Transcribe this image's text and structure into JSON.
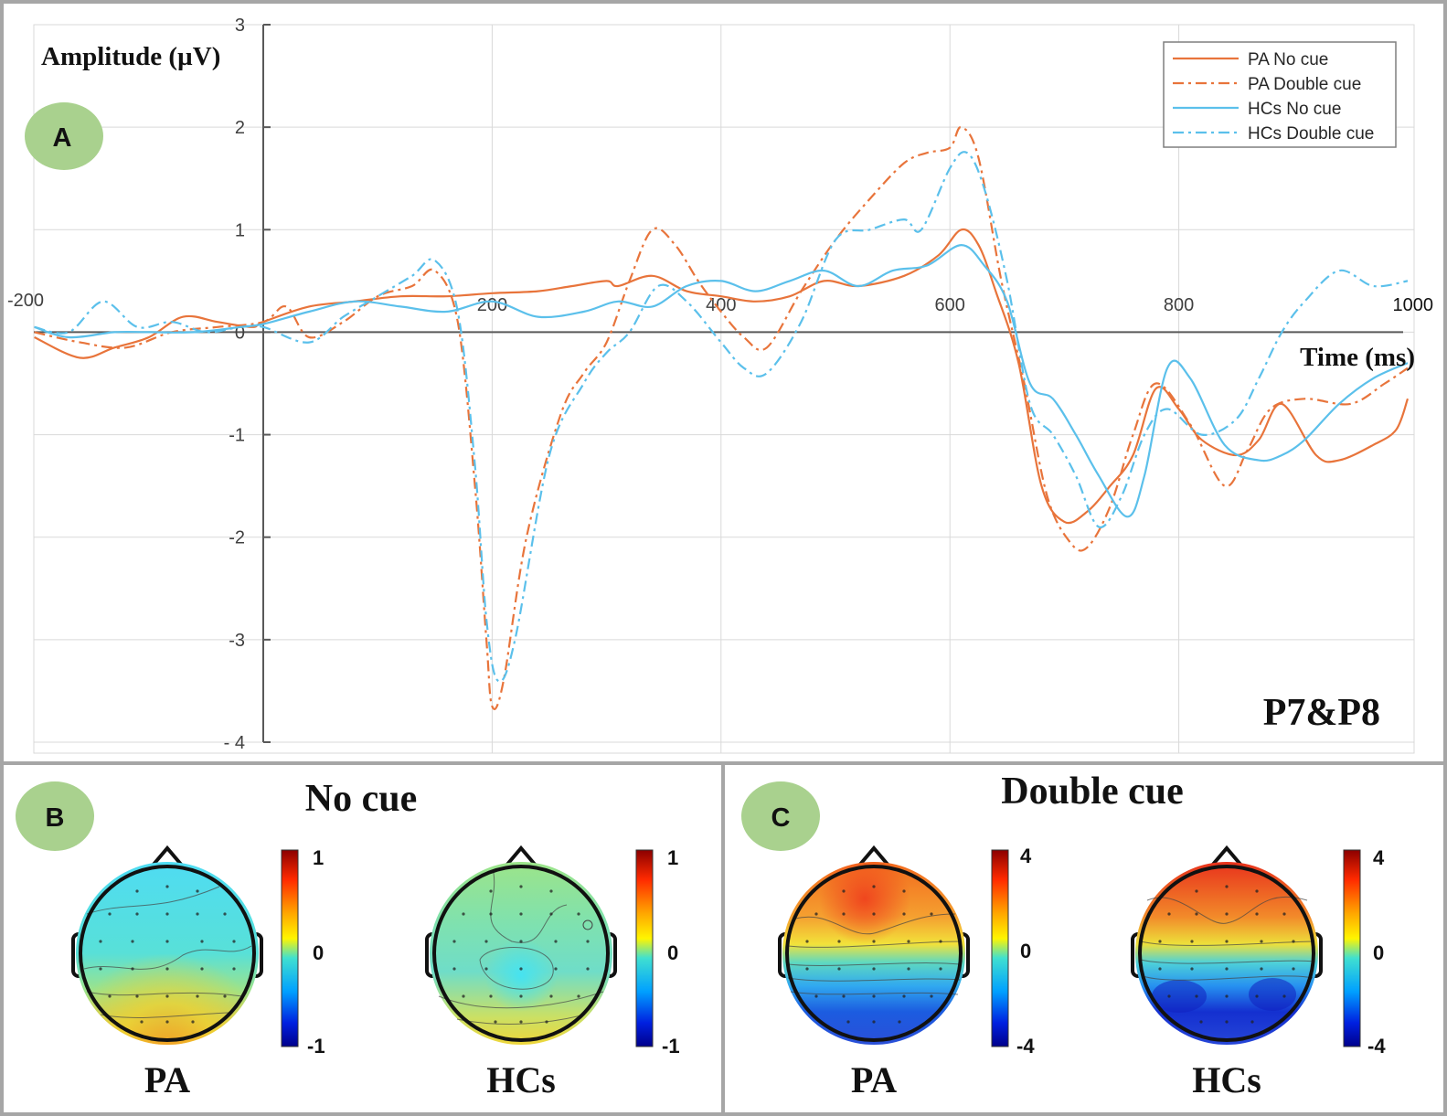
{
  "panels": {
    "a": {
      "badge": "A",
      "label": "P7&P8",
      "ylabel": "Amplitude (µV)",
      "xlabel": "Time (ms)"
    },
    "b": {
      "badge": "B",
      "title": "No cue",
      "maps": [
        {
          "group": "PA",
          "colorbar_ticks": [
            "1",
            "0",
            "-1"
          ]
        },
        {
          "group": "HCs",
          "colorbar_ticks": [
            "1",
            "0",
            "-1"
          ]
        }
      ]
    },
    "c": {
      "badge": "C",
      "title": "Double cue",
      "maps": [
        {
          "group": "PA",
          "colorbar_ticks": [
            "4",
            "0",
            "-4"
          ]
        },
        {
          "group": "HCs",
          "colorbar_ticks": [
            "4",
            "0",
            "-4"
          ]
        }
      ]
    }
  },
  "colors": {
    "pa": "#E8743B",
    "hcs": "#5BC0EB",
    "badge": "#A9D18E",
    "frame": "#A6A6A6",
    "grid": "#D9D9D9"
  },
  "chart_data": {
    "type": "line",
    "title": "P7&P8",
    "xlabel": "Time (ms)",
    "ylabel": "Amplitude (µV)",
    "xlim": [
      -200,
      1000
    ],
    "ylim": [
      -4,
      3
    ],
    "xticks": [
      -200,
      200,
      400,
      600,
      800,
      1000
    ],
    "xtick_labels": [
      "-200",
      "200",
      "400",
      "600",
      "800",
      "1000"
    ],
    "yticks": [
      3,
      2,
      1,
      0,
      -1,
      -2,
      -3,
      -4
    ],
    "ytick_labels": [
      "3",
      "2",
      "1",
      "0",
      "-1",
      "-2",
      "-3",
      "- 4"
    ],
    "grid": true,
    "legend_position": "top-right",
    "series": [
      {
        "name": "PA No cue",
        "color": "#E8743B",
        "dash": "solid",
        "points": [
          [
            -200,
            -0.05
          ],
          [
            -160,
            -0.25
          ],
          [
            -130,
            -0.15
          ],
          [
            -100,
            -0.05
          ],
          [
            -70,
            0.15
          ],
          [
            -40,
            0.1
          ],
          [
            -10,
            0.05
          ],
          [
            0,
            0.1
          ],
          [
            40,
            0.25
          ],
          [
            80,
            0.3
          ],
          [
            120,
            0.35
          ],
          [
            160,
            0.35
          ],
          [
            200,
            0.38
          ],
          [
            240,
            0.4
          ],
          [
            270,
            0.45
          ],
          [
            300,
            0.5
          ],
          [
            310,
            0.45
          ],
          [
            340,
            0.55
          ],
          [
            370,
            0.4
          ],
          [
            400,
            0.35
          ],
          [
            430,
            0.3
          ],
          [
            460,
            0.35
          ],
          [
            490,
            0.5
          ],
          [
            520,
            0.45
          ],
          [
            560,
            0.55
          ],
          [
            590,
            0.75
          ],
          [
            610,
            1.0
          ],
          [
            625,
            0.85
          ],
          [
            640,
            0.4
          ],
          [
            660,
            -0.3
          ],
          [
            680,
            -1.5
          ],
          [
            700,
            -1.85
          ],
          [
            720,
            -1.75
          ],
          [
            740,
            -1.5
          ],
          [
            760,
            -1.2
          ],
          [
            780,
            -0.55
          ],
          [
            800,
            -0.75
          ],
          [
            820,
            -1.05
          ],
          [
            850,
            -1.2
          ],
          [
            870,
            -1.05
          ],
          [
            890,
            -0.7
          ],
          [
            920,
            -1.2
          ],
          [
            940,
            -1.25
          ],
          [
            970,
            -1.1
          ],
          [
            990,
            -0.95
          ],
          [
            1000,
            -0.65
          ]
        ]
      },
      {
        "name": "PA Double cue",
        "color": "#E8743B",
        "dash": "dashdot",
        "points": [
          [
            -200,
            0.0
          ],
          [
            -160,
            -0.1
          ],
          [
            -120,
            -0.15
          ],
          [
            -80,
            0.0
          ],
          [
            -40,
            0.05
          ],
          [
            0,
            0.1
          ],
          [
            20,
            0.25
          ],
          [
            40,
            -0.05
          ],
          [
            70,
            0.1
          ],
          [
            100,
            0.35
          ],
          [
            130,
            0.45
          ],
          [
            150,
            0.6
          ],
          [
            170,
            0.1
          ],
          [
            185,
            -1.5
          ],
          [
            195,
            -3.0
          ],
          [
            200,
            -3.65
          ],
          [
            210,
            -3.4
          ],
          [
            230,
            -2.0
          ],
          [
            260,
            -0.8
          ],
          [
            280,
            -0.4
          ],
          [
            300,
            -0.1
          ],
          [
            320,
            0.5
          ],
          [
            340,
            1.0
          ],
          [
            360,
            0.85
          ],
          [
            380,
            0.5
          ],
          [
            400,
            0.2
          ],
          [
            420,
            -0.05
          ],
          [
            440,
            -0.15
          ],
          [
            470,
            0.4
          ],
          [
            500,
            0.9
          ],
          [
            530,
            1.3
          ],
          [
            560,
            1.65
          ],
          [
            580,
            1.75
          ],
          [
            600,
            1.8
          ],
          [
            610,
            2.0
          ],
          [
            625,
            1.7
          ],
          [
            645,
            0.5
          ],
          [
            665,
            -0.5
          ],
          [
            685,
            -1.6
          ],
          [
            705,
            -2.05
          ],
          [
            720,
            -2.1
          ],
          [
            740,
            -1.7
          ],
          [
            760,
            -1.0
          ],
          [
            780,
            -0.5
          ],
          [
            810,
            -0.9
          ],
          [
            840,
            -1.5
          ],
          [
            860,
            -1.15
          ],
          [
            880,
            -0.75
          ],
          [
            910,
            -0.65
          ],
          [
            950,
            -0.7
          ],
          [
            980,
            -0.5
          ],
          [
            1000,
            -0.35
          ]
        ]
      },
      {
        "name": "HCs No cue",
        "color": "#5BC0EB",
        "dash": "solid",
        "points": [
          [
            -200,
            0.05
          ],
          [
            -170,
            -0.05
          ],
          [
            -130,
            0.0
          ],
          [
            -100,
            0.0
          ],
          [
            -60,
            0.0
          ],
          [
            -20,
            0.05
          ],
          [
            0,
            0.08
          ],
          [
            40,
            0.2
          ],
          [
            80,
            0.3
          ],
          [
            120,
            0.25
          ],
          [
            160,
            0.2
          ],
          [
            200,
            0.3
          ],
          [
            240,
            0.15
          ],
          [
            280,
            0.2
          ],
          [
            310,
            0.3
          ],
          [
            340,
            0.25
          ],
          [
            370,
            0.45
          ],
          [
            400,
            0.5
          ],
          [
            430,
            0.4
          ],
          [
            460,
            0.5
          ],
          [
            490,
            0.6
          ],
          [
            520,
            0.45
          ],
          [
            550,
            0.6
          ],
          [
            580,
            0.65
          ],
          [
            610,
            0.85
          ],
          [
            630,
            0.65
          ],
          [
            650,
            0.3
          ],
          [
            670,
            -0.5
          ],
          [
            690,
            -0.65
          ],
          [
            710,
            -1.0
          ],
          [
            730,
            -1.4
          ],
          [
            755,
            -1.8
          ],
          [
            770,
            -1.4
          ],
          [
            790,
            -0.35
          ],
          [
            810,
            -0.45
          ],
          [
            840,
            -1.1
          ],
          [
            870,
            -1.25
          ],
          [
            890,
            -1.2
          ],
          [
            910,
            -1.05
          ],
          [
            940,
            -0.7
          ],
          [
            970,
            -0.45
          ],
          [
            1000,
            -0.3
          ]
        ]
      },
      {
        "name": "HCs Double cue",
        "color": "#5BC0EB",
        "dash": "dashdot",
        "points": [
          [
            -200,
            0.05
          ],
          [
            -170,
            0.0
          ],
          [
            -140,
            0.3
          ],
          [
            -110,
            0.05
          ],
          [
            -80,
            0.1
          ],
          [
            -50,
            0.0
          ],
          [
            -20,
            0.05
          ],
          [
            0,
            0.05
          ],
          [
            40,
            -0.1
          ],
          [
            70,
            0.15
          ],
          [
            100,
            0.35
          ],
          [
            130,
            0.55
          ],
          [
            150,
            0.7
          ],
          [
            170,
            0.2
          ],
          [
            185,
            -1.3
          ],
          [
            195,
            -2.8
          ],
          [
            205,
            -3.4
          ],
          [
            220,
            -3.0
          ],
          [
            250,
            -1.2
          ],
          [
            280,
            -0.5
          ],
          [
            300,
            -0.2
          ],
          [
            320,
            0.0
          ],
          [
            345,
            0.45
          ],
          [
            370,
            0.3
          ],
          [
            400,
            -0.1
          ],
          [
            420,
            -0.35
          ],
          [
            440,
            -0.4
          ],
          [
            470,
            0.1
          ],
          [
            500,
            0.9
          ],
          [
            530,
            1.0
          ],
          [
            560,
            1.1
          ],
          [
            575,
            1.0
          ],
          [
            600,
            1.6
          ],
          [
            615,
            1.75
          ],
          [
            630,
            1.4
          ],
          [
            650,
            0.5
          ],
          [
            670,
            -0.7
          ],
          [
            690,
            -1.0
          ],
          [
            710,
            -1.4
          ],
          [
            730,
            -1.9
          ],
          [
            750,
            -1.6
          ],
          [
            770,
            -1.0
          ],
          [
            790,
            -0.75
          ],
          [
            820,
            -1.0
          ],
          [
            850,
            -0.85
          ],
          [
            870,
            -0.45
          ],
          [
            890,
            0.0
          ],
          [
            910,
            0.3
          ],
          [
            940,
            0.6
          ],
          [
            970,
            0.45
          ],
          [
            1000,
            0.5
          ]
        ]
      }
    ]
  }
}
